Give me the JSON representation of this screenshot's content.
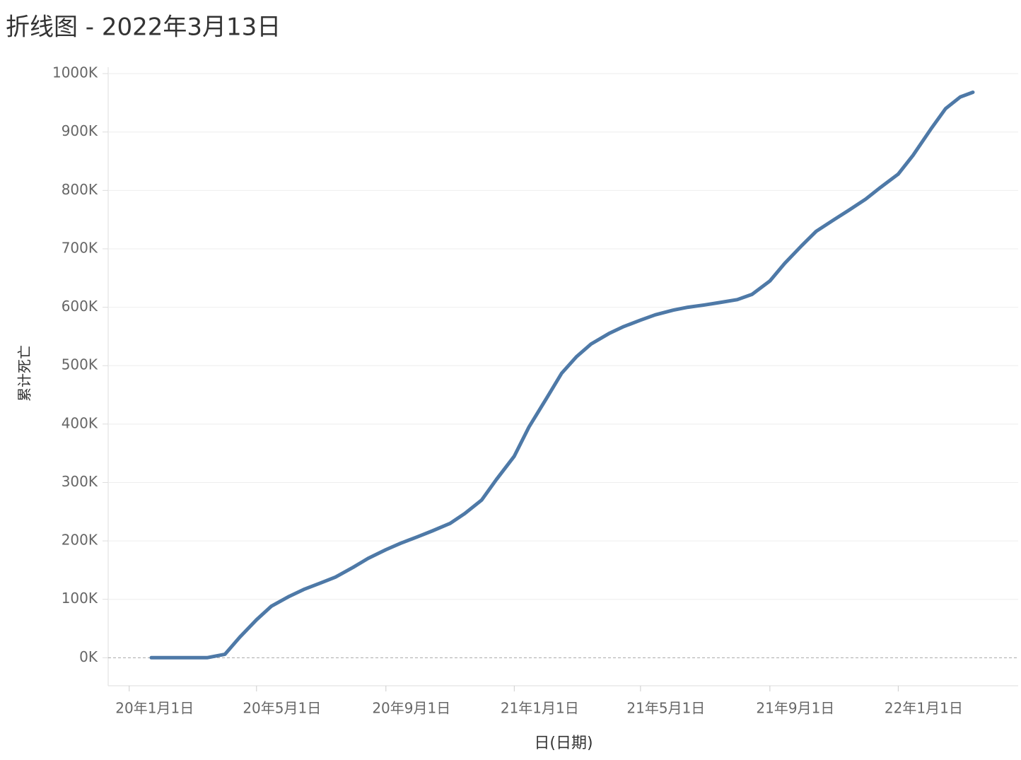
{
  "chart_data": {
    "type": "line",
    "title": "折线图 - 2022年3月13日",
    "x_label": "日(日期)",
    "y_label": "累计死亡",
    "x": [
      "2020-01-22",
      "2020-03-01",
      "2020-03-15",
      "2020-04-01",
      "2020-04-15",
      "2020-05-01",
      "2020-05-15",
      "2020-06-01",
      "2020-06-15",
      "2020-07-01",
      "2020-07-15",
      "2020-08-01",
      "2020-08-15",
      "2020-09-01",
      "2020-09-15",
      "2020-10-01",
      "2020-10-15",
      "2020-11-01",
      "2020-11-15",
      "2020-12-01",
      "2020-12-15",
      "2021-01-01",
      "2021-01-15",
      "2021-02-01",
      "2021-02-15",
      "2021-03-01",
      "2021-03-15",
      "2021-04-01",
      "2021-04-15",
      "2021-05-01",
      "2021-05-15",
      "2021-06-01",
      "2021-06-15",
      "2021-07-01",
      "2021-07-15",
      "2021-08-01",
      "2021-08-15",
      "2021-09-01",
      "2021-09-15",
      "2021-10-01",
      "2021-10-15",
      "2021-11-01",
      "2021-11-15",
      "2021-12-01",
      "2021-12-15",
      "2022-01-01",
      "2022-01-15",
      "2022-02-01",
      "2022-02-15",
      "2022-03-01",
      "2022-03-13"
    ],
    "series": [
      {
        "name": "累计死亡",
        "color": "#4e79a7",
        "values": [
          0,
          0,
          0,
          6,
          35,
          65,
          88,
          105,
          117,
          128,
          138,
          155,
          170,
          185,
          196,
          207,
          217,
          230,
          247,
          270,
          305,
          345,
          395,
          445,
          487,
          515,
          537,
          555,
          567,
          578,
          587,
          595,
          600,
          604,
          608,
          613,
          622,
          645,
          675,
          705,
          730,
          750,
          766,
          785,
          805,
          828,
          860,
          905,
          940,
          960,
          968
        ]
      }
    ],
    "xlim": [
      "2019-12-12",
      "2022-04-25"
    ],
    "xticks": [
      {
        "value": "2020-01-01",
        "label": "20年1月1日"
      },
      {
        "value": "2020-05-01",
        "label": "20年5月1日"
      },
      {
        "value": "2020-09-01",
        "label": "20年9月1日"
      },
      {
        "value": "2021-01-01",
        "label": "21年1月1日"
      },
      {
        "value": "2021-05-01",
        "label": "21年5月1日"
      },
      {
        "value": "2021-09-01",
        "label": "21年9月1日"
      },
      {
        "value": "2022-01-01",
        "label": "22年1月1日"
      }
    ],
    "ylim": [
      -48,
      1011
    ],
    "yticks": [
      {
        "value": 0,
        "label": "0K"
      },
      {
        "value": 100,
        "label": "100K"
      },
      {
        "value": 200,
        "label": "200K"
      },
      {
        "value": 300,
        "label": "300K"
      },
      {
        "value": 400,
        "label": "400K"
      },
      {
        "value": 500,
        "label": "500K"
      },
      {
        "value": 600,
        "label": "600K"
      },
      {
        "value": 700,
        "label": "700K"
      },
      {
        "value": 800,
        "label": "800K"
      },
      {
        "value": 900,
        "label": "900K"
      },
      {
        "value": 1000,
        "label": "1000K"
      }
    ],
    "grid": true
  }
}
